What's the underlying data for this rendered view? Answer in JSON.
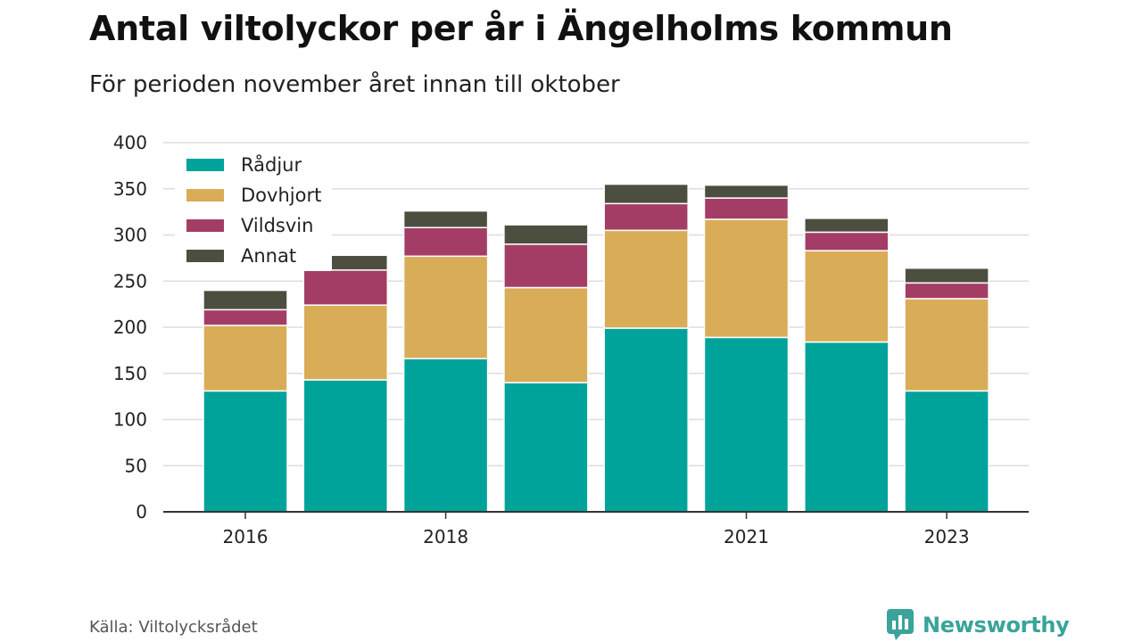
{
  "header": {
    "title": "Antal viltolyckor per år i Ängelholms kommun",
    "subtitle": "För perioden november året innan till oktober"
  },
  "footer": {
    "source": "Källa: Viltolycksrådet",
    "brand": "Newsworthy",
    "brand_icon": "bar-chart-speech-bubble-icon"
  },
  "colors": {
    "radjur": "#00a39a",
    "dovhjort": "#d9ac58",
    "vildsvin": "#a33d66",
    "annat": "#4c4e3f",
    "grid": "#dddddd",
    "axis": "#333333",
    "brand": "#3aa39a"
  },
  "chart_data": {
    "type": "bar",
    "stacked": true,
    "categories": [
      "2016",
      "2017",
      "2018",
      "2019",
      "2020",
      "2021",
      "2022",
      "2023"
    ],
    "x_tick_labels": [
      "2016",
      "",
      "2018",
      "",
      "",
      "2021",
      "",
      "2023"
    ],
    "series": [
      {
        "name": "Rådjur",
        "values": [
          131,
          143,
          166,
          140,
          199,
          189,
          184,
          131
        ]
      },
      {
        "name": "Dovhjort",
        "values": [
          71,
          81,
          111,
          103,
          106,
          128,
          99,
          100
        ]
      },
      {
        "name": "Vildsvin",
        "values": [
          17,
          38,
          31,
          47,
          29,
          23,
          20,
          17
        ]
      },
      {
        "name": "Annat",
        "values": [
          21,
          16,
          18,
          21,
          21,
          14,
          15,
          16
        ]
      }
    ],
    "ylim": [
      0,
      400
    ],
    "yticks": [
      0,
      50,
      100,
      150,
      200,
      250,
      300,
      350,
      400
    ],
    "grid": true,
    "legend_position": "top-left"
  }
}
